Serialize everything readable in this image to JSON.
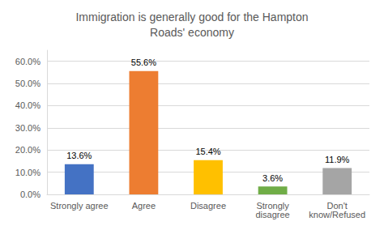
{
  "chart_data": {
    "type": "bar",
    "title": "Immigration is generally good for the Hampton\nRoads' economy",
    "categories": [
      "Strongly agree",
      "Agree",
      "Disagree",
      "Strongly\ndisagree",
      "Don't\nknow/Refused"
    ],
    "values": [
      13.6,
      55.6,
      15.4,
      3.6,
      11.9
    ],
    "value_labels": [
      "13.6%",
      "55.6%",
      "15.4%",
      "3.6%",
      "11.9%"
    ],
    "colors": [
      "#4472c4",
      "#ed7d31",
      "#ffc000",
      "#70ad47",
      "#a5a5a5"
    ],
    "ylim": [
      0,
      65
    ],
    "yticks": [
      {
        "value": 0,
        "label": "0.0%"
      },
      {
        "value": 10,
        "label": "10.0%"
      },
      {
        "value": 20,
        "label": "20.0%"
      },
      {
        "value": 30,
        "label": "30.0%"
      },
      {
        "value": 40,
        "label": "40.0%"
      },
      {
        "value": 50,
        "label": "50.0%"
      },
      {
        "value": 60,
        "label": "60.0%"
      }
    ],
    "grid": true,
    "data_labels": true
  }
}
